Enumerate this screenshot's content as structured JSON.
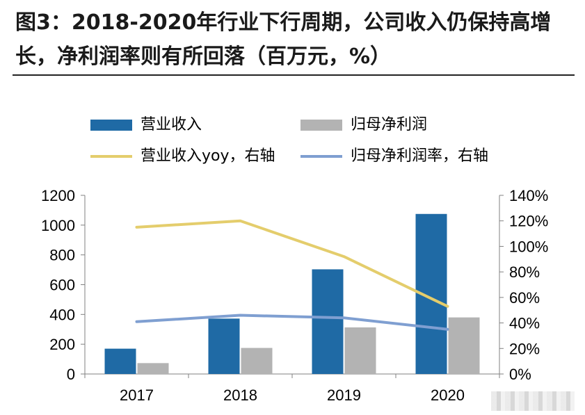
{
  "title": "图3：2018-2020年行业下行周期，公司收入仍保持高增长，净利润率则有所回落（百万元，%）",
  "legend": [
    {
      "label": "营业收入",
      "kind": "bar",
      "color": "#1f6aa5"
    },
    {
      "label": "归母净利润",
      "kind": "bar",
      "color": "#b3b3b3"
    },
    {
      "label": "营业收入yoy，右轴",
      "kind": "line",
      "color": "#e4cd6c"
    },
    {
      "label": "归母净利润率，右轴",
      "kind": "line",
      "color": "#7f9fd1"
    }
  ],
  "chart_data": {
    "type": "bar",
    "categories": [
      "2017",
      "2018",
      "2019",
      "2020"
    ],
    "series": [
      {
        "name": "营业收入",
        "kind": "bar",
        "axis": "left",
        "color": "#1f6aa5",
        "values": [
          170,
          372,
          703,
          1075
        ]
      },
      {
        "name": "归母净利润",
        "kind": "bar",
        "axis": "left",
        "color": "#b3b3b3",
        "values": [
          73,
          175,
          313,
          380
        ]
      },
      {
        "name": "营业收入yoy，右轴",
        "kind": "line",
        "axis": "right",
        "color": "#e4cd6c",
        "values": [
          115,
          120,
          92,
          53
        ]
      },
      {
        "name": "归母净利润率，右轴",
        "kind": "line",
        "axis": "right",
        "color": "#7f9fd1",
        "values": [
          41,
          46,
          44,
          35
        ]
      }
    ],
    "ylim": [
      0,
      1200
    ],
    "y_ticks": [
      "0",
      "200",
      "400",
      "600",
      "800",
      "1000",
      "1200"
    ],
    "y2lim": [
      0,
      140
    ],
    "y2_ticks": [
      "0%",
      "20%",
      "40%",
      "60%",
      "80%",
      "100%",
      "120%",
      "140%"
    ],
    "grid": false,
    "legend_position": "top"
  }
}
